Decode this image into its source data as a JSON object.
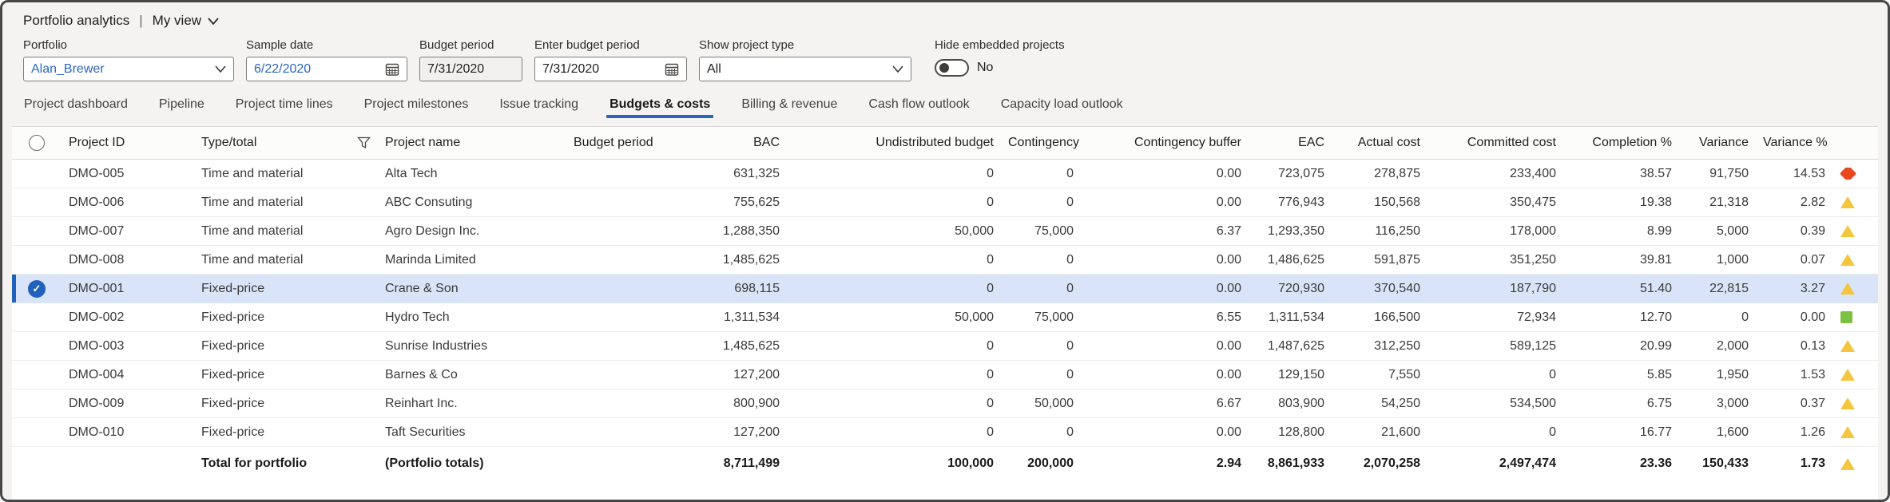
{
  "titlebar": {
    "title": "Portfolio analytics",
    "divider": "|",
    "view_label": "My view"
  },
  "filters": {
    "portfolio": {
      "label": "Portfolio",
      "value": "Alan_Brewer"
    },
    "sample_date": {
      "label": "Sample date",
      "value": "6/22/2020"
    },
    "budget_period": {
      "label": "Budget period",
      "value": "7/31/2020"
    },
    "enter_budget_period": {
      "label": "Enter budget period",
      "value": "7/31/2020"
    },
    "show_project_type": {
      "label": "Show project type",
      "value": "All"
    },
    "hide_embedded": {
      "label": "Hide embedded projects",
      "value": "No",
      "state": "off"
    }
  },
  "tabs": [
    {
      "label": "Project dashboard",
      "active": false
    },
    {
      "label": "Pipeline",
      "active": false
    },
    {
      "label": "Project time lines",
      "active": false
    },
    {
      "label": "Project milestones",
      "active": false
    },
    {
      "label": "Issue tracking",
      "active": false
    },
    {
      "label": "Budgets & costs",
      "active": true
    },
    {
      "label": "Billing & revenue",
      "active": false
    },
    {
      "label": "Cash flow outlook",
      "active": false
    },
    {
      "label": "Capacity load outlook",
      "active": false
    }
  ],
  "table": {
    "columns": [
      {
        "key": "id",
        "label": "Project ID",
        "align": "left"
      },
      {
        "key": "type",
        "label": "Type/total",
        "align": "left",
        "filter_icon": "funnel-icon"
      },
      {
        "key": "name",
        "label": "Project name",
        "align": "left"
      },
      {
        "key": "period",
        "label": "Budget period",
        "align": "left"
      },
      {
        "key": "bac",
        "label": "BAC",
        "align": "right"
      },
      {
        "key": "undistributed",
        "label": "Undistributed budget",
        "align": "right"
      },
      {
        "key": "contingency",
        "label": "Contingency",
        "align": "right"
      },
      {
        "key": "buffer",
        "label": "Contingency buffer",
        "align": "right"
      },
      {
        "key": "eac",
        "label": "EAC",
        "align": "right"
      },
      {
        "key": "actual",
        "label": "Actual cost",
        "align": "right"
      },
      {
        "key": "committed",
        "label": "Committed cost",
        "align": "right"
      },
      {
        "key": "completion",
        "label": "Completion %",
        "align": "right"
      },
      {
        "key": "variance",
        "label": "Variance",
        "align": "right"
      },
      {
        "key": "variance_pct",
        "label": "Variance %",
        "align": "right"
      }
    ],
    "rows": [
      {
        "id": "DMO-005",
        "type": "Time and material",
        "name": "Alta Tech",
        "period": "",
        "bac": "631,325",
        "undistributed": "0",
        "contingency": "0",
        "buffer": "0.00",
        "eac": "723,075",
        "actual": "278,875",
        "committed": "233,400",
        "completion": "38.57",
        "variance": "91,750",
        "variance_pct": "14.53",
        "status_icon": "diamond-red",
        "selected": false
      },
      {
        "id": "DMO-006",
        "type": "Time and material",
        "name": "ABC Consuting",
        "period": "",
        "bac": "755,625",
        "undistributed": "0",
        "contingency": "0",
        "buffer": "0.00",
        "eac": "776,943",
        "actual": "150,568",
        "committed": "350,475",
        "completion": "19.38",
        "variance": "21,318",
        "variance_pct": "2.82",
        "status_icon": "triangle-yellow",
        "selected": false
      },
      {
        "id": "DMO-007",
        "type": "Time and material",
        "name": "Agro Design Inc.",
        "period": "",
        "bac": "1,288,350",
        "undistributed": "50,000",
        "contingency": "75,000",
        "buffer": "6.37",
        "eac": "1,293,350",
        "actual": "116,250",
        "committed": "178,000",
        "completion": "8.99",
        "variance": "5,000",
        "variance_pct": "0.39",
        "status_icon": "triangle-yellow",
        "selected": false
      },
      {
        "id": "DMO-008",
        "type": "Time and material",
        "name": "Marinda Limited",
        "period": "",
        "bac": "1,485,625",
        "undistributed": "0",
        "contingency": "0",
        "buffer": "0.00",
        "eac": "1,486,625",
        "actual": "591,875",
        "committed": "351,250",
        "completion": "39.81",
        "variance": "1,000",
        "variance_pct": "0.07",
        "status_icon": "triangle-yellow",
        "selected": false
      },
      {
        "id": "DMO-001",
        "type": "Fixed-price",
        "name": "Crane & Son",
        "period": "",
        "bac": "698,115",
        "undistributed": "0",
        "contingency": "0",
        "buffer": "0.00",
        "eac": "720,930",
        "actual": "370,540",
        "committed": "187,790",
        "completion": "51.40",
        "variance": "22,815",
        "variance_pct": "3.27",
        "status_icon": "triangle-yellow",
        "selected": true
      },
      {
        "id": "DMO-002",
        "type": "Fixed-price",
        "name": "Hydro Tech",
        "period": "",
        "bac": "1,311,534",
        "undistributed": "50,000",
        "contingency": "75,000",
        "buffer": "6.55",
        "eac": "1,311,534",
        "actual": "166,500",
        "committed": "72,934",
        "completion": "12.70",
        "variance": "0",
        "variance_pct": "0.00",
        "status_icon": "square-green",
        "selected": false
      },
      {
        "id": "DMO-003",
        "type": "Fixed-price",
        "name": "Sunrise Industries",
        "period": "",
        "bac": "1,485,625",
        "undistributed": "0",
        "contingency": "0",
        "buffer": "0.00",
        "eac": "1,487,625",
        "actual": "312,250",
        "committed": "589,125",
        "completion": "20.99",
        "variance": "2,000",
        "variance_pct": "0.13",
        "status_icon": "triangle-yellow",
        "selected": false
      },
      {
        "id": "DMO-004",
        "type": "Fixed-price",
        "name": "Barnes & Co",
        "period": "",
        "bac": "127,200",
        "undistributed": "0",
        "contingency": "0",
        "buffer": "0.00",
        "eac": "129,150",
        "actual": "7,550",
        "committed": "0",
        "completion": "5.85",
        "variance": "1,950",
        "variance_pct": "1.53",
        "status_icon": "triangle-yellow",
        "selected": false
      },
      {
        "id": "DMO-009",
        "type": "Fixed-price",
        "name": "Reinhart Inc.",
        "period": "",
        "bac": "800,900",
        "undistributed": "0",
        "contingency": "50,000",
        "buffer": "6.67",
        "eac": "803,900",
        "actual": "54,250",
        "committed": "534,500",
        "completion": "6.75",
        "variance": "3,000",
        "variance_pct": "0.37",
        "status_icon": "triangle-yellow",
        "selected": false
      },
      {
        "id": "DMO-010",
        "type": "Fixed-price",
        "name": "Taft Securities",
        "period": "",
        "bac": "127,200",
        "undistributed": "0",
        "contingency": "0",
        "buffer": "0.00",
        "eac": "128,800",
        "actual": "21,600",
        "committed": "0",
        "completion": "16.77",
        "variance": "1,600",
        "variance_pct": "1.26",
        "status_icon": "triangle-yellow",
        "selected": false
      },
      {
        "id": "",
        "type": "Total for portfolio",
        "name": "(Portfolio totals)",
        "period": "",
        "bac": "8,711,499",
        "undistributed": "100,000",
        "contingency": "200,000",
        "buffer": "2.94",
        "eac": "8,861,933",
        "actual": "2,070,258",
        "committed": "2,497,474",
        "completion": "23.36",
        "variance": "150,433",
        "variance_pct": "1.73",
        "status_icon": "triangle-yellow",
        "selected": false,
        "total": true
      }
    ]
  },
  "colors": {
    "accent_blue": "#1f61bb",
    "selected_row_bg": "#d9e4f8",
    "link_blue": "#2b66bd",
    "alert_red": "#e8481c",
    "warn_yellow": "#f4c63d",
    "ok_green": "#7cc142"
  }
}
